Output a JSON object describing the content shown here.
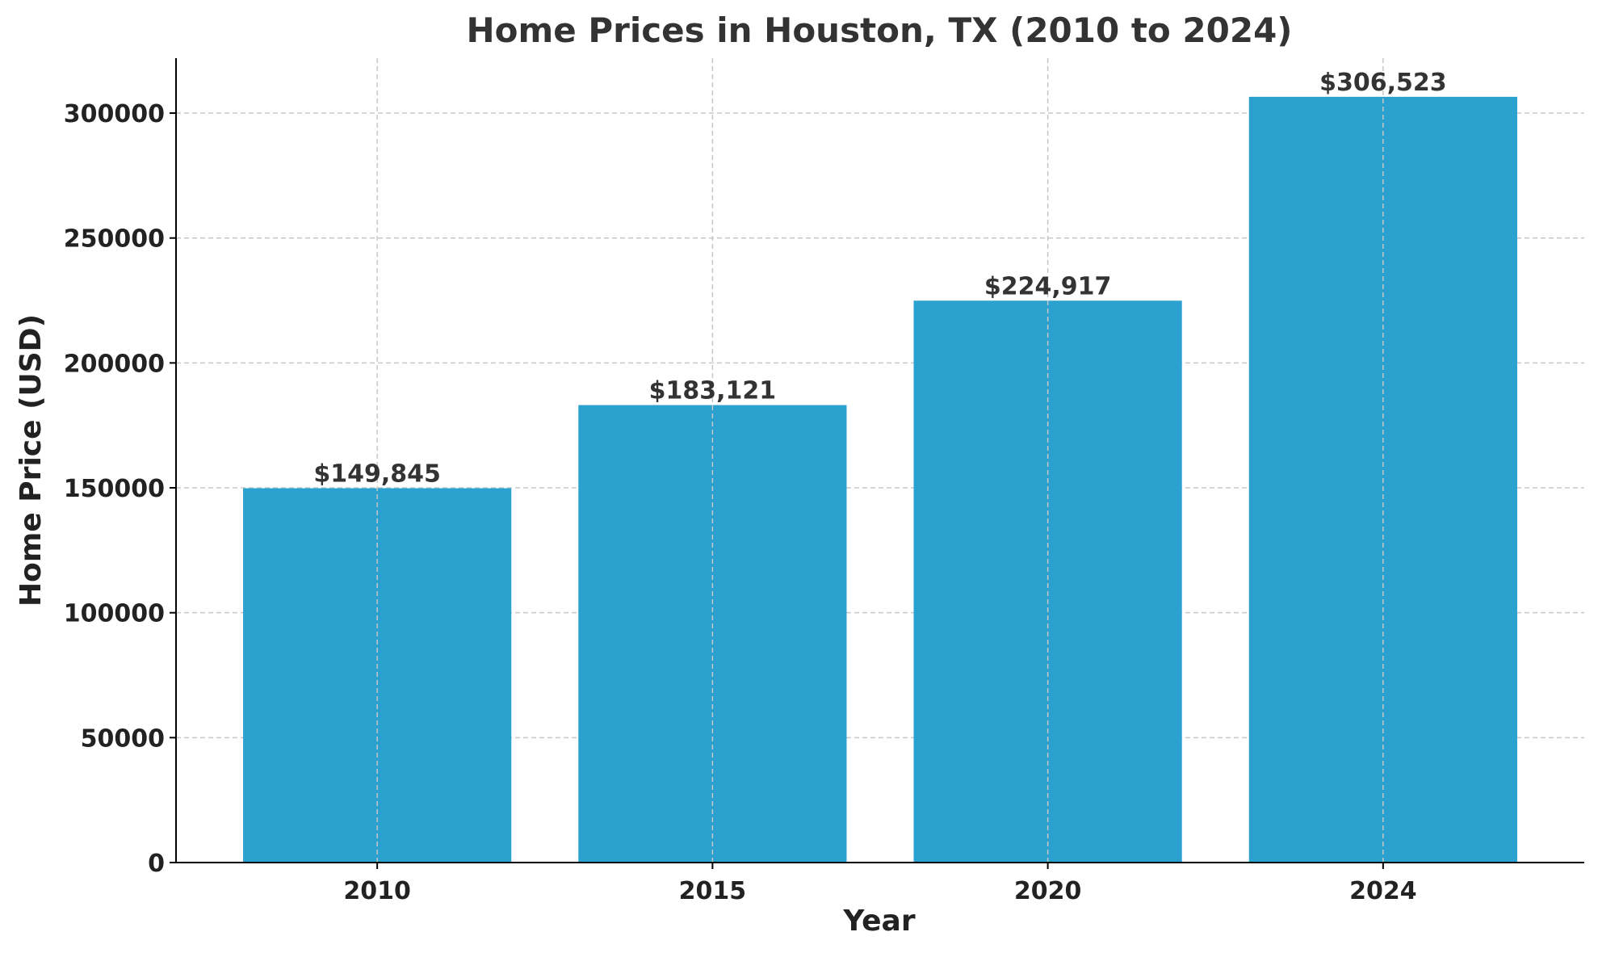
{
  "chart_data": {
    "type": "bar",
    "title": "Home Prices in Houston, TX (2010 to 2024)",
    "xlabel": "Year",
    "ylabel": "Home Price (USD)",
    "categories": [
      "2010",
      "2015",
      "2020",
      "2024"
    ],
    "values": [
      149845,
      183121,
      224917,
      306523
    ],
    "value_labels": [
      "$149,845",
      "$183,121",
      "$224,917",
      "$306,523"
    ],
    "ylim": [
      0,
      322000
    ],
    "yticks": [
      0,
      50000,
      100000,
      150000,
      200000,
      250000,
      300000
    ],
    "ytick_labels": [
      "0",
      "50000",
      "100000",
      "150000",
      "200000",
      "250000",
      "300000"
    ],
    "grid": true,
    "bar_color": "#2aa1ce"
  }
}
